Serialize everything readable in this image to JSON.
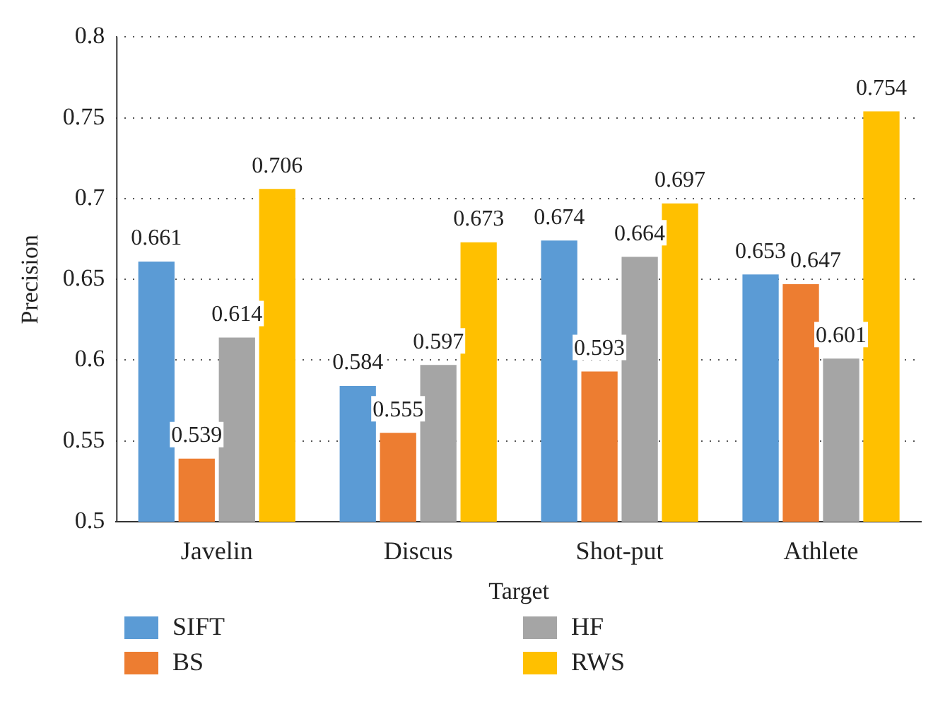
{
  "chart_data": {
    "type": "bar",
    "xlabel": "Target",
    "ylabel": "Precision",
    "categories": [
      "Javelin",
      "Discus",
      "Shot-put",
      "Athlete"
    ],
    "series": [
      {
        "name": "SIFT",
        "color": "#5b9bd5",
        "values": [
          0.661,
          0.584,
          0.674,
          0.653
        ]
      },
      {
        "name": "BS",
        "color": "#ed7d31",
        "values": [
          0.539,
          0.555,
          0.593,
          0.647
        ]
      },
      {
        "name": "HF",
        "color": "#a5a5a5",
        "values": [
          0.614,
          0.597,
          0.664,
          0.601
        ]
      },
      {
        "name": "RWS",
        "color": "#ffc000",
        "values": [
          0.706,
          0.673,
          0.697,
          0.754
        ]
      }
    ],
    "ylim": [
      0.5,
      0.8
    ],
    "yticks": [
      0.5,
      0.55,
      0.6,
      0.65,
      0.7,
      0.75,
      0.8
    ],
    "grid": "y",
    "legend": "bottom",
    "data_labels": true
  }
}
